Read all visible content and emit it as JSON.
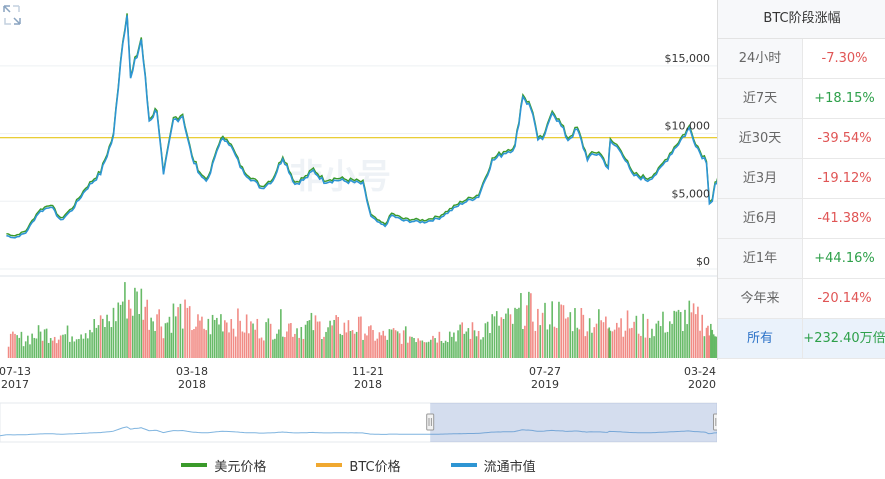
{
  "legend": [
    {
      "label": "美元价格",
      "color": "#3a9a2a"
    },
    {
      "label": "BTC价格",
      "color": "#f0a830"
    },
    {
      "label": "流通市值",
      "color": "#2e95d3"
    }
  ],
  "watermark": "非小号",
  "side_panel": {
    "title": "BTC阶段涨幅",
    "rows": [
      {
        "label": "24小时",
        "value": "-7.30%",
        "trend": "neg"
      },
      {
        "label": "近7天",
        "value": "+18.15%",
        "trend": "pos"
      },
      {
        "label": "近30天",
        "value": "-39.54%",
        "trend": "neg"
      },
      {
        "label": "近3月",
        "value": "-19.12%",
        "trend": "neg"
      },
      {
        "label": "近6月",
        "value": "-41.38%",
        "trend": "neg"
      },
      {
        "label": "近1年",
        "value": "+44.16%",
        "trend": "pos"
      },
      {
        "label": "今年来",
        "value": "-20.14%",
        "trend": "neg"
      },
      {
        "label": "所有",
        "value": "+232.40万倍",
        "trend": "pos",
        "active": true
      }
    ]
  },
  "chart_data": {
    "type": "line",
    "y_ticks": [
      "$15,000",
      "$10,000",
      "$5,000",
      "$0"
    ],
    "y_tick_values": [
      15000,
      10000,
      5000,
      0
    ],
    "ylim": [
      0,
      19500
    ],
    "x_ticks": [
      {
        "date": "07-13",
        "year": "2017"
      },
      {
        "date": "03-18",
        "year": "2018"
      },
      {
        "date": "11-21",
        "year": "2018"
      },
      {
        "date": "07-27",
        "year": "2019"
      },
      {
        "date": "03-24",
        "year": "2020"
      }
    ],
    "reference_line": {
      "value": 9700,
      "color": "#e6c619"
    },
    "series": [
      {
        "name": "美元价格",
        "color": "#3a9a2a"
      },
      {
        "name": "流通市值",
        "color": "#2e95d3"
      }
    ],
    "price_points": [
      [
        "2017-07-01",
        2500
      ],
      [
        "2017-07-13",
        2350
      ],
      [
        "2017-07-28",
        2700
      ],
      [
        "2017-08-15",
        4200
      ],
      [
        "2017-09-01",
        4700
      ],
      [
        "2017-09-15",
        3600
      ],
      [
        "2017-10-01",
        4400
      ],
      [
        "2017-10-20",
        5900
      ],
      [
        "2017-11-10",
        7100
      ],
      [
        "2017-11-28",
        9800
      ],
      [
        "2017-12-08",
        15500
      ],
      [
        "2017-12-17",
        19200
      ],
      [
        "2017-12-22",
        14000
      ],
      [
        "2018-01-06",
        17000
      ],
      [
        "2018-01-17",
        11000
      ],
      [
        "2018-01-28",
        11800
      ],
      [
        "2018-02-06",
        6900
      ],
      [
        "2018-02-20",
        11000
      ],
      [
        "2018-03-05",
        11400
      ],
      [
        "2018-03-18",
        8200
      ],
      [
        "2018-04-01",
        6800
      ],
      [
        "2018-04-10",
        6600
      ],
      [
        "2018-04-25",
        9300
      ],
      [
        "2018-05-06",
        9700
      ],
      [
        "2018-05-28",
        7300
      ],
      [
        "2018-06-24",
        6000
      ],
      [
        "2018-07-10",
        6600
      ],
      [
        "2018-07-24",
        8300
      ],
      [
        "2018-08-10",
        6300
      ],
      [
        "2018-08-25",
        6700
      ],
      [
        "2018-09-05",
        7300
      ],
      [
        "2018-09-20",
        6500
      ],
      [
        "2018-10-10",
        6600
      ],
      [
        "2018-11-05",
        6400
      ],
      [
        "2018-11-14",
        6300
      ],
      [
        "2018-11-25",
        3900
      ],
      [
        "2018-12-07",
        3400
      ],
      [
        "2018-12-15",
        3200
      ],
      [
        "2018-12-24",
        4000
      ],
      [
        "2019-01-10",
        3600
      ],
      [
        "2019-02-08",
        3500
      ],
      [
        "2019-03-01",
        3800
      ],
      [
        "2019-04-02",
        4900
      ],
      [
        "2019-04-25",
        5400
      ],
      [
        "2019-05-14",
        8000
      ],
      [
        "2019-05-30",
        8600
      ],
      [
        "2019-06-15",
        9000
      ],
      [
        "2019-06-26",
        12900
      ],
      [
        "2019-07-10",
        11600
      ],
      [
        "2019-07-17",
        9400
      ],
      [
        "2019-07-27",
        9800
      ],
      [
        "2019-08-06",
        11800
      ],
      [
        "2019-08-28",
        9600
      ],
      [
        "2019-09-10",
        10300
      ],
      [
        "2019-09-24",
        8200
      ],
      [
        "2019-10-10",
        8600
      ],
      [
        "2019-10-23",
        7500
      ],
      [
        "2019-10-26",
        9400
      ],
      [
        "2019-11-10",
        8800
      ],
      [
        "2019-11-25",
        7000
      ],
      [
        "2019-12-17",
        6600
      ],
      [
        "2020-01-01",
        7200
      ],
      [
        "2020-01-20",
        8700
      ],
      [
        "2020-02-13",
        10400
      ],
      [
        "2020-02-28",
        8600
      ],
      [
        "2020-03-08",
        8000
      ],
      [
        "2020-03-12",
        4900
      ],
      [
        "2020-03-16",
        5000
      ],
      [
        "2020-03-20",
        6200
      ],
      [
        "2020-03-24",
        6700
      ]
    ]
  },
  "controls": {
    "zoom_icon": "expand-arrows-icon",
    "navigator_range": [
      0.6,
      1.0
    ]
  }
}
